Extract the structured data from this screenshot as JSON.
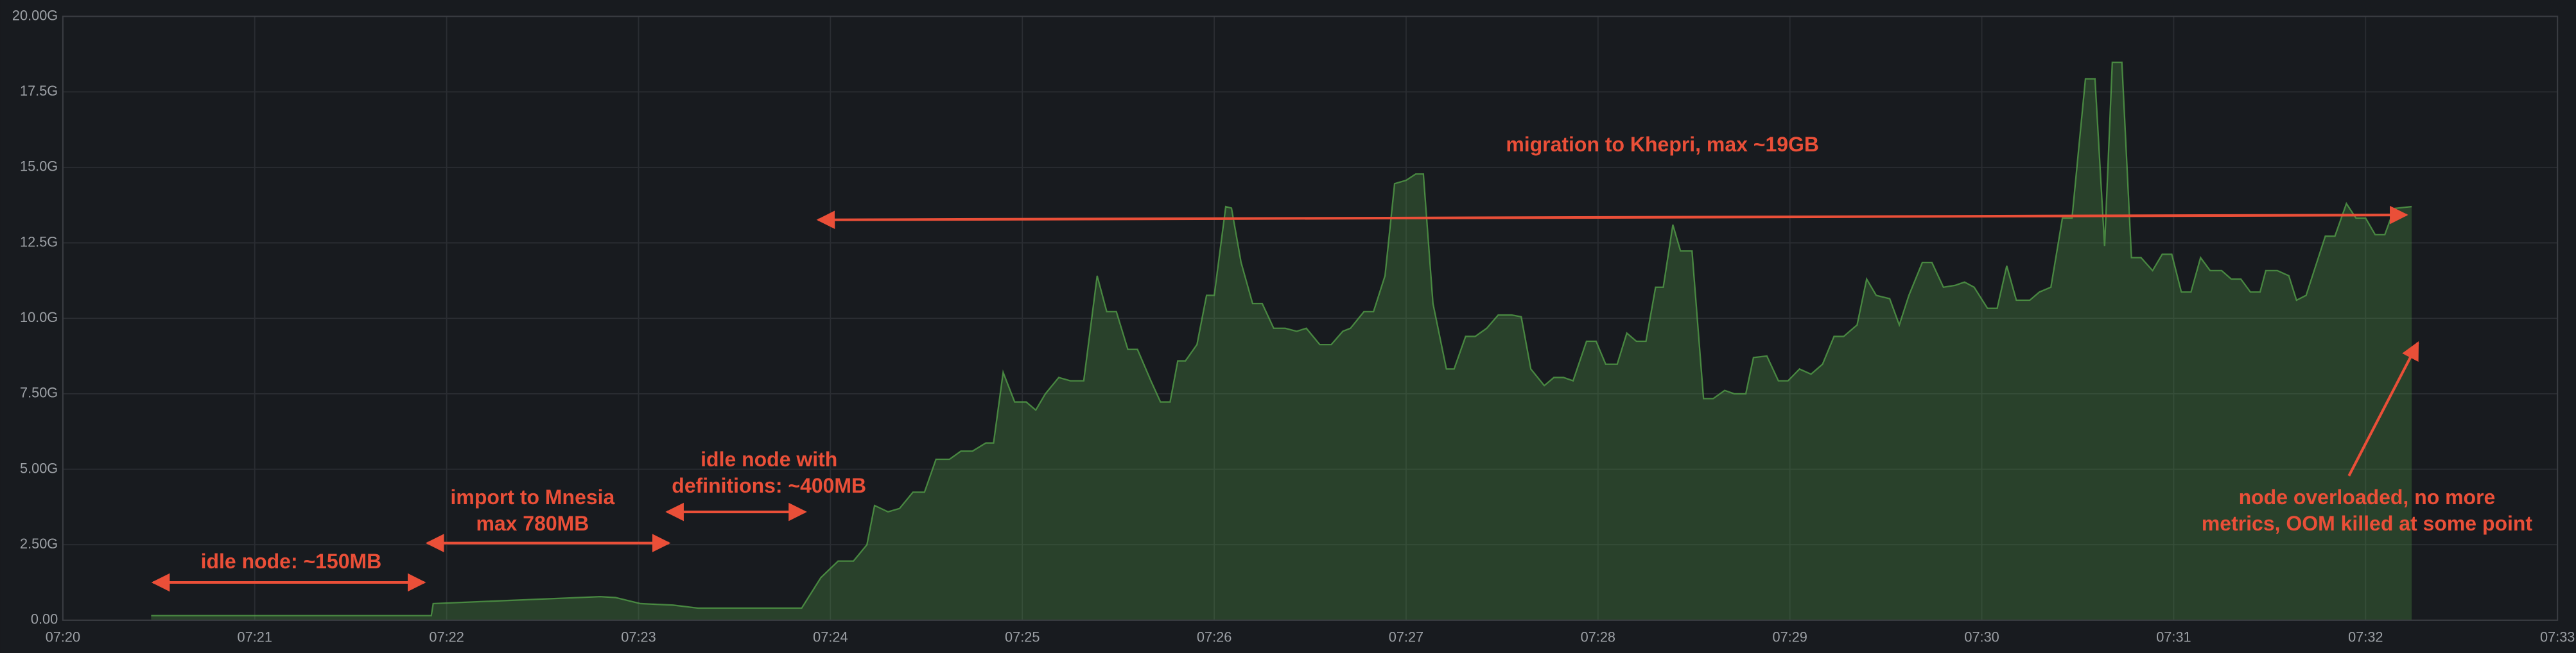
{
  "chart_data": {
    "type": "area",
    "xlim": [
      0,
      13
    ],
    "xticks": [
      {
        "value": 0,
        "label": "07:20"
      },
      {
        "value": 1,
        "label": "07:21"
      },
      {
        "value": 2,
        "label": "07:22"
      },
      {
        "value": 3,
        "label": "07:23"
      },
      {
        "value": 4,
        "label": "07:24"
      },
      {
        "value": 5,
        "label": "07:25"
      },
      {
        "value": 6,
        "label": "07:26"
      },
      {
        "value": 7,
        "label": "07:27"
      },
      {
        "value": 8,
        "label": "07:28"
      },
      {
        "value": 9,
        "label": "07:29"
      },
      {
        "value": 10,
        "label": "07:30"
      },
      {
        "value": 11,
        "label": "07:31"
      },
      {
        "value": 12,
        "label": "07:32"
      },
      {
        "value": 13,
        "label": "07:33"
      }
    ],
    "ylim": [
      0,
      20
    ],
    "yticks": [
      {
        "value": 0,
        "label": "0.00"
      },
      {
        "value": 2.5,
        "label": "2.50G"
      },
      {
        "value": 5,
        "label": "5.00G"
      },
      {
        "value": 7.5,
        "label": "7.50G"
      },
      {
        "value": 10,
        "label": "10.0G"
      },
      {
        "value": 12.5,
        "label": "12.5G"
      },
      {
        "value": 15,
        "label": "15.0G"
      },
      {
        "value": 17.5,
        "label": "17.5G"
      },
      {
        "value": 20,
        "label": "20.00G"
      }
    ],
    "grid": true,
    "color": "#56a64b",
    "x": [
      0.46,
      1.92,
      1.93,
      2.8,
      2.88,
      3.01,
      3.18,
      3.31,
      3.85,
      3.95,
      4.04,
      4.12,
      4.19,
      4.23,
      4.3,
      4.36,
      4.43,
      4.49,
      4.55,
      4.62,
      4.68,
      4.74,
      4.81,
      4.85,
      4.9,
      4.96,
      5.02,
      5.07,
      5.12,
      5.19,
      5.25,
      5.32,
      5.39,
      5.44,
      5.49,
      5.55,
      5.6,
      5.67,
      5.72,
      5.77,
      5.81,
      5.85,
      5.91,
      5.96,
      6.0,
      6.06,
      6.09,
      6.14,
      6.2,
      6.25,
      6.31,
      6.37,
      6.43,
      6.48,
      6.55,
      6.61,
      6.67,
      6.71,
      6.78,
      6.83,
      6.89,
      6.94,
      7.0,
      7.05,
      7.09,
      7.14,
      7.21,
      7.25,
      7.31,
      7.36,
      7.42,
      7.48,
      7.55,
      7.6,
      7.65,
      7.72,
      7.77,
      7.82,
      7.87,
      7.94,
      7.99,
      8.04,
      8.1,
      8.15,
      8.2,
      8.25,
      8.3,
      8.34,
      8.39,
      8.43,
      8.49,
      8.55,
      8.6,
      8.66,
      8.71,
      8.77,
      8.81,
      8.88,
      8.94,
      8.99,
      9.05,
      9.11,
      9.17,
      9.23,
      9.28,
      9.35,
      9.4,
      9.45,
      9.52,
      9.57,
      9.62,
      9.69,
      9.74,
      9.8,
      9.86,
      9.91,
      9.96,
      10.03,
      10.08,
      10.13,
      10.18,
      10.25,
      10.3,
      10.36,
      10.42,
      10.47,
      10.54,
      10.59,
      10.64,
      10.68,
      10.73,
      10.78,
      10.83,
      10.89,
      10.94,
      10.99,
      11.04,
      11.09,
      11.14,
      11.19,
      11.25,
      11.3,
      11.35,
      11.4,
      11.45,
      11.48,
      11.54,
      11.6,
      11.64,
      11.69,
      11.74,
      11.79,
      11.84,
      11.9,
      11.95,
      12.0,
      12.05,
      12.1,
      12.15,
      12.24
    ],
    "values": [
      0.15,
      0.15,
      0.55,
      0.78,
      0.75,
      0.55,
      0.5,
      0.4,
      0.4,
      1.41,
      1.96,
      1.96,
      2.5,
      3.8,
      3.59,
      3.7,
      4.24,
      4.24,
      5.33,
      5.33,
      5.6,
      5.6,
      5.87,
      5.87,
      8.21,
      7.23,
      7.23,
      6.96,
      7.5,
      8.04,
      7.93,
      7.93,
      11.41,
      10.22,
      10.22,
      8.97,
      8.97,
      7.93,
      7.23,
      7.23,
      8.59,
      8.59,
      9.13,
      10.76,
      10.76,
      13.7,
      13.65,
      11.85,
      10.49,
      10.49,
      9.67,
      9.67,
      9.57,
      9.67,
      9.13,
      9.13,
      9.57,
      9.67,
      10.22,
      10.22,
      11.41,
      14.46,
      14.57,
      14.78,
      14.78,
      10.49,
      8.32,
      8.32,
      9.4,
      9.4,
      9.67,
      10.11,
      10.11,
      10.05,
      8.32,
      7.77,
      8.04,
      8.04,
      7.93,
      9.24,
      9.24,
      8.48,
      8.48,
      9.51,
      9.24,
      9.24,
      11.03,
      11.03,
      13.1,
      12.23,
      12.23,
      7.34,
      7.34,
      7.61,
      7.5,
      7.5,
      8.7,
      8.75,
      7.93,
      7.93,
      8.32,
      8.15,
      8.48,
      9.4,
      9.4,
      9.78,
      11.3,
      10.76,
      10.65,
      9.78,
      10.76,
      11.85,
      11.85,
      11.03,
      11.09,
      11.2,
      11.03,
      10.33,
      10.33,
      11.74,
      10.6,
      10.6,
      10.87,
      11.03,
      13.32,
      13.32,
      17.93,
      17.93,
      12.39,
      18.48,
      18.48,
      12.01,
      12.01,
      11.58,
      12.12,
      12.12,
      10.87,
      10.87,
      12.01,
      11.58,
      11.58,
      11.3,
      11.3,
      10.87,
      10.87,
      11.58,
      11.58,
      11.41,
      10.6,
      10.76,
      11.74,
      12.72,
      12.72,
      13.8,
      13.32,
      13.32,
      12.77,
      12.77,
      13.64,
      13.7
    ],
    "annotations": [
      {
        "lines": [
          "idle node: ~150MB"
        ]
      },
      {
        "lines": [
          "import to Mnesia",
          "max 780MB"
        ]
      },
      {
        "lines": [
          "idle node with",
          "definitions: ~400MB"
        ]
      },
      {
        "lines": [
          "migration to Khepri, max ~19GB"
        ]
      },
      {
        "lines": [
          "node overloaded, no more",
          "metrics, OOM killed at some point"
        ]
      }
    ]
  }
}
